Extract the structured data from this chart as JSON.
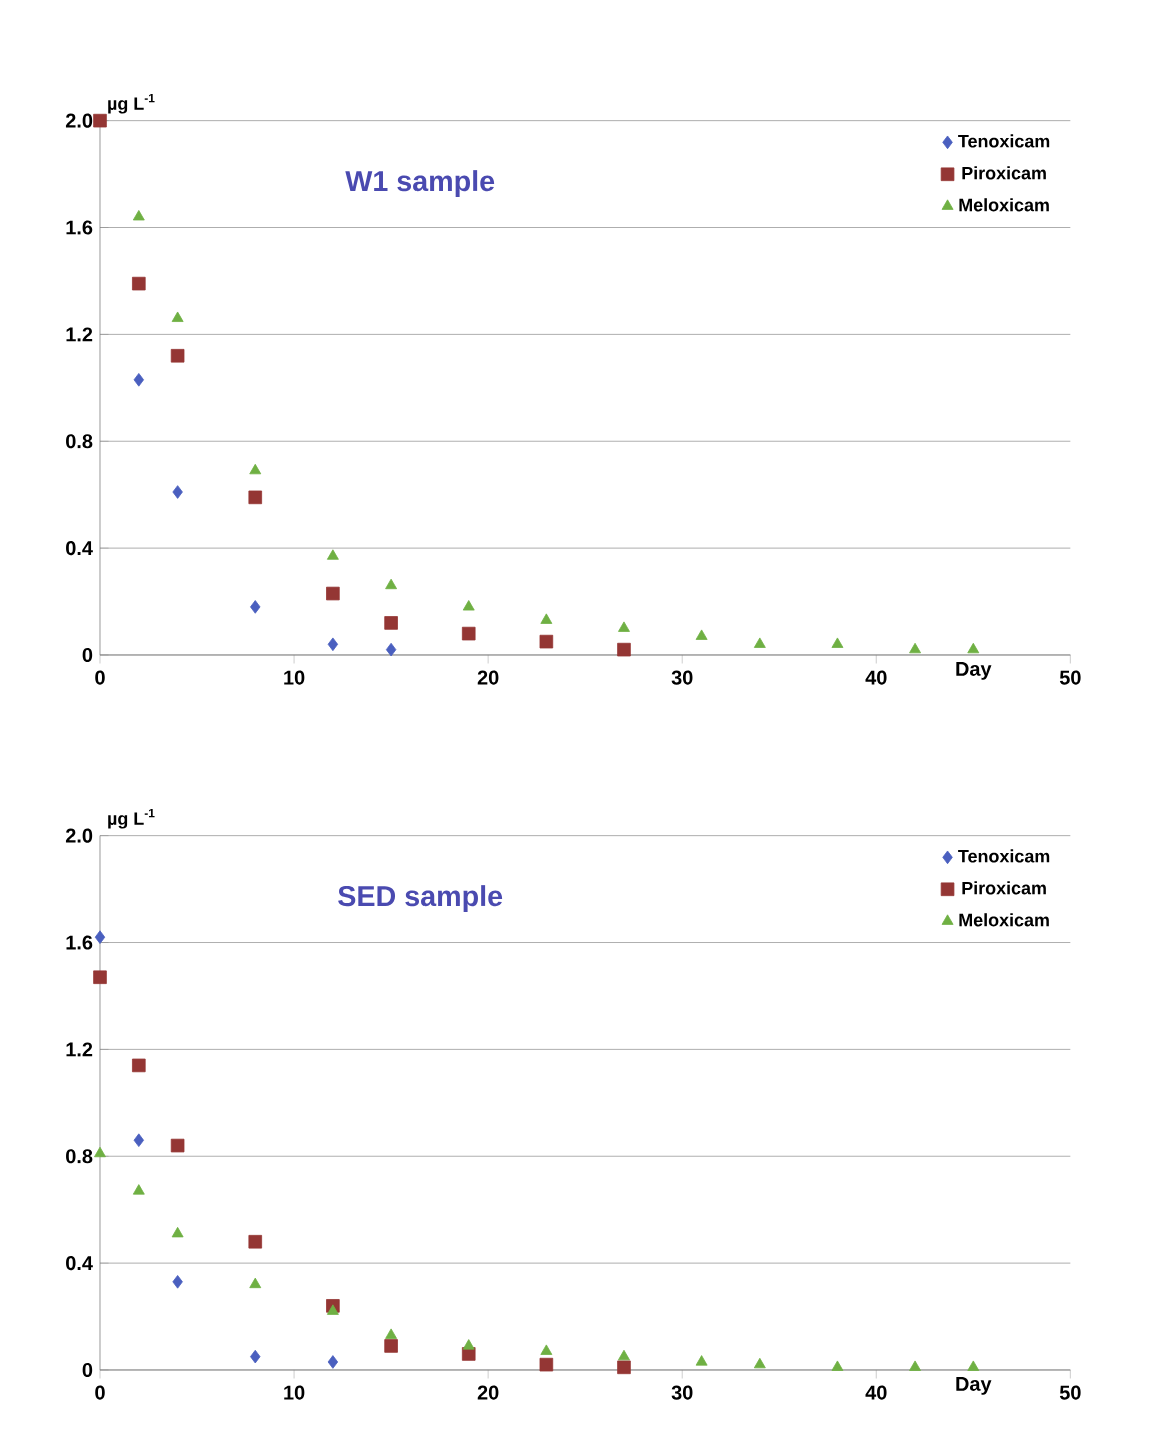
{
  "chart_data": [
    {
      "type": "scatter",
      "title": "W1 sample",
      "xlabel": "Day",
      "ylabel": "µg L$^{-1}$",
      "xlim": [
        0,
        50
      ],
      "xticks": [
        0,
        10,
        20,
        30,
        40,
        50
      ],
      "ylim": [
        0,
        2
      ],
      "yticks": [
        0,
        0.4,
        0.8,
        1.2,
        1.6,
        {
          "value": 2,
          "label": "2.0"
        }
      ],
      "grid": "y",
      "legend": "top right",
      "series": [
        {
          "name": "Tenoxicam",
          "color": "#4a5fbf",
          "marker": "diamond",
          "x": [
            2,
            4,
            8,
            12,
            15
          ],
          "values": [
            1.03,
            0.61,
            0.18,
            0.04,
            0.02
          ]
        },
        {
          "name": "Piroxicam",
          "color": "#943634",
          "marker": "square",
          "x": [
            0,
            2,
            4,
            8,
            12,
            15,
            19,
            23,
            27
          ],
          "values": [
            2.0,
            1.39,
            1.12,
            0.59,
            0.23,
            0.12,
            0.08,
            0.05,
            0.02
          ]
        },
        {
          "name": "Meloxicam",
          "color": "#6fb043",
          "marker": "triangle",
          "x": [
            2,
            4,
            8,
            12,
            15,
            19,
            23,
            27,
            31,
            34,
            38,
            42,
            45
          ],
          "values": [
            1.64,
            1.26,
            0.69,
            0.37,
            0.26,
            0.18,
            0.13,
            0.1,
            0.07,
            0.04,
            0.04,
            0.02,
            0.02
          ]
        }
      ]
    },
    {
      "type": "scatter",
      "title": "SED sample",
      "xlabel": "Day",
      "ylabel": "µg L$^{-1}$",
      "xlim": [
        0,
        50
      ],
      "xticks": [
        0,
        10,
        20,
        30,
        40,
        50
      ],
      "ylim": [
        0,
        2
      ],
      "yticks": [
        0,
        0.4,
        0.8,
        1.2,
        1.6,
        {
          "value": 2,
          "label": "2.0"
        }
      ],
      "grid": "y",
      "legend": "top right",
      "series": [
        {
          "name": "Tenoxicam",
          "color": "#4a5fbf",
          "marker": "diamond",
          "x": [
            0,
            2,
            4,
            8,
            12
          ],
          "values": [
            1.62,
            0.86,
            0.33,
            0.05,
            0.03
          ]
        },
        {
          "name": "Piroxicam",
          "color": "#943634",
          "marker": "square",
          "x": [
            0,
            2,
            4,
            8,
            12,
            15,
            19,
            23,
            27
          ],
          "values": [
            1.47,
            1.14,
            0.84,
            0.48,
            0.24,
            0.09,
            0.06,
            0.02,
            0.01
          ]
        },
        {
          "name": "Meloxicam",
          "color": "#6fb043",
          "marker": "triangle",
          "x": [
            0,
            2,
            4,
            8,
            12,
            15,
            19,
            23,
            27,
            31,
            34,
            38,
            42,
            45
          ],
          "values": [
            0.81,
            0.67,
            0.51,
            0.32,
            0.22,
            0.13,
            0.09,
            0.07,
            0.05,
            0.03,
            0.02,
            0.01,
            0.01,
            0.01
          ]
        }
      ]
    }
  ]
}
